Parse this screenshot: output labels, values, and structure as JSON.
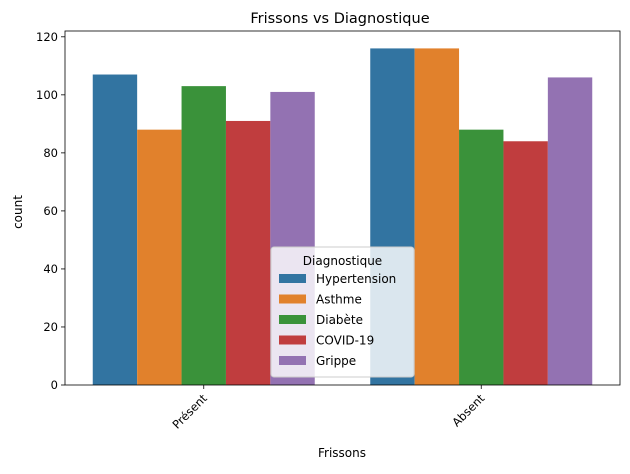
{
  "chart_data": {
    "type": "bar",
    "title": "Frissons vs Diagnostique",
    "xlabel": "Frissons",
    "ylabel": "count",
    "categories": [
      "Présent",
      "Absent"
    ],
    "ylim": [
      0,
      122
    ],
    "yticks": [
      0,
      20,
      40,
      60,
      80,
      100,
      120
    ],
    "grid": false,
    "legend": {
      "title": "Diagnostique",
      "placement": "bottom-center"
    },
    "series": [
      {
        "name": "Hypertension",
        "color": "#3274a1",
        "values": [
          107,
          116
        ]
      },
      {
        "name": "Asthme",
        "color": "#e1812c",
        "values": [
          88,
          116
        ]
      },
      {
        "name": "Diabète",
        "color": "#3a923a",
        "values": [
          103,
          88
        ]
      },
      {
        "name": "COVID-19",
        "color": "#c03d3e",
        "values": [
          91,
          84
        ]
      },
      {
        "name": "Grippe",
        "color": "#9372b2",
        "values": [
          101,
          106
        ]
      }
    ]
  }
}
